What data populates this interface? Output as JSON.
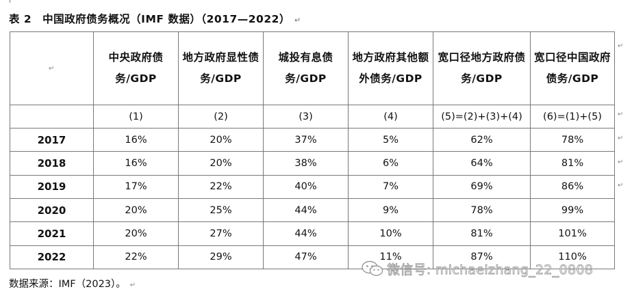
{
  "title": "表 2　中国政府债务概况（IMF 数据）（2017—2022）",
  "paragraph_mark": "↵",
  "headers": [
    "",
    "中央政府债务/GDP",
    "地方政府显性债务/GDP",
    "城投有息债务/GDP",
    "地方政府其他额外债务/GDP",
    "宽口径地方政府债务/GDP",
    "宽口径中国政府债务/GDP"
  ],
  "index_row": [
    "",
    "(1)",
    "(2)",
    "(3)",
    "(4)",
    "(5)=(2)+(3)+(4)",
    "(6)=(1)+(5)"
  ],
  "rows": [
    {
      "year": "2017",
      "values": [
        "16%",
        "20%",
        "37%",
        "5%",
        "62%",
        "78%"
      ]
    },
    {
      "year": "2018",
      "values": [
        "16%",
        "20%",
        "38%",
        "6%",
        "64%",
        "81%"
      ]
    },
    {
      "year": "2019",
      "values": [
        "17%",
        "22%",
        "40%",
        "7%",
        "69%",
        "86%"
      ]
    },
    {
      "year": "2020",
      "values": [
        "20%",
        "25%",
        "44%",
        "9%",
        "78%",
        "99%"
      ]
    },
    {
      "year": "2021",
      "values": [
        "20%",
        "27%",
        "44%",
        "10%",
        "81%",
        "101%"
      ]
    },
    {
      "year": "2022",
      "values": [
        "22%",
        "29%",
        "47%",
        "11%",
        "87%",
        "110%"
      ]
    }
  ],
  "source": "数据来源：IMF（2023）。",
  "watermark": {
    "icon": "wechat-icon",
    "text": "微信号: michaelzhang_22_0808"
  },
  "colors": {
    "border": "#777777",
    "text": "#111111",
    "watermark_stroke": "#8a8a8a"
  }
}
